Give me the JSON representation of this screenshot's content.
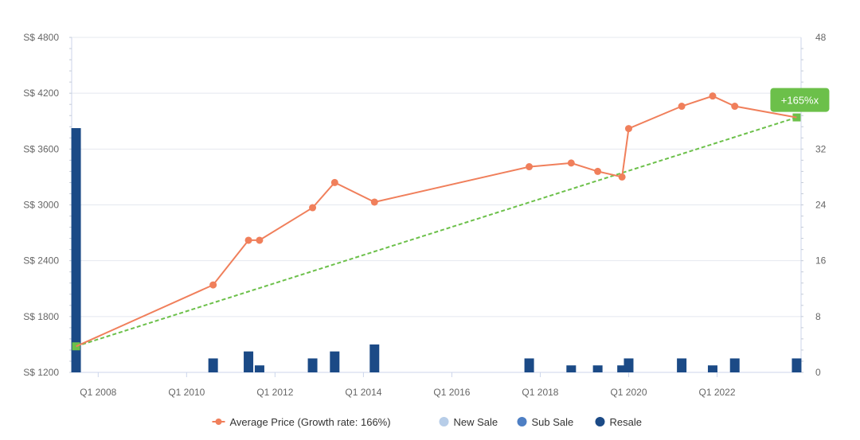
{
  "chart_data": {
    "type": "bar+line",
    "title": "",
    "x_tick_labels": [
      "Q1 2008",
      "Q1 2010",
      "Q1 2012",
      "Q1 2014",
      "Q1 2016",
      "Q1 2018",
      "Q1 2020",
      "Q1 2022"
    ],
    "x_ticks": [
      2008,
      2010,
      2012,
      2014,
      2016,
      2018,
      2020,
      2022
    ],
    "xlim": [
      2007.4,
      2023.9
    ],
    "y_left": {
      "ylim": [
        1200,
        4800
      ],
      "ticks": [
        1200,
        1800,
        2400,
        3000,
        3600,
        4200,
        4800
      ],
      "tick_labels": [
        "S$ 1200",
        "S$ 1800",
        "S$ 2400",
        "S$ 3000",
        "S$ 3600",
        "S$ 4200",
        "S$ 4800"
      ]
    },
    "y_right": {
      "ylim": [
        0,
        48
      ],
      "ticks": [
        0,
        8,
        16,
        24,
        32,
        40,
        48
      ],
      "tick_labels": [
        "0",
        "8",
        "16",
        "24",
        "32",
        "40",
        "48"
      ]
    },
    "grid": true,
    "legend_position": "bottom-center",
    "series": [
      {
        "name": "Average Price (Growth rate: 166%)",
        "type": "line",
        "axis": "left",
        "color": "#f07f5b",
        "points": [
          {
            "x": 2007.5,
            "y": 1480
          },
          {
            "x": 2010.6,
            "y": 2140
          },
          {
            "x": 2011.4,
            "y": 2620
          },
          {
            "x": 2011.65,
            "y": 2620
          },
          {
            "x": 2012.85,
            "y": 2970
          },
          {
            "x": 2013.35,
            "y": 3240
          },
          {
            "x": 2014.25,
            "y": 3030
          },
          {
            "x": 2017.75,
            "y": 3410
          },
          {
            "x": 2018.7,
            "y": 3450
          },
          {
            "x": 2019.3,
            "y": 3360
          },
          {
            "x": 2019.85,
            "y": 3300
          },
          {
            "x": 2020.0,
            "y": 3820
          },
          {
            "x": 2021.2,
            "y": 4060
          },
          {
            "x": 2021.9,
            "y": 4170
          },
          {
            "x": 2022.4,
            "y": 4060
          },
          {
            "x": 2023.8,
            "y": 3940
          }
        ]
      },
      {
        "name": "New Sale",
        "type": "bar",
        "axis": "right",
        "color": "#b7cde8",
        "points": []
      },
      {
        "name": "Sub Sale",
        "type": "bar",
        "axis": "right",
        "color": "#4e7fc4",
        "points": []
      },
      {
        "name": "Resale",
        "type": "bar",
        "axis": "right",
        "color": "#1b4a86",
        "points": [
          {
            "x": 2007.5,
            "y": 35
          },
          {
            "x": 2010.6,
            "y": 2
          },
          {
            "x": 2011.4,
            "y": 3
          },
          {
            "x": 2011.65,
            "y": 1
          },
          {
            "x": 2012.85,
            "y": 2
          },
          {
            "x": 2013.35,
            "y": 3
          },
          {
            "x": 2014.25,
            "y": 4
          },
          {
            "x": 2017.75,
            "y": 2
          },
          {
            "x": 2018.7,
            "y": 1
          },
          {
            "x": 2019.3,
            "y": 1
          },
          {
            "x": 2019.85,
            "y": 1
          },
          {
            "x": 2020.0,
            "y": 2
          },
          {
            "x": 2021.2,
            "y": 2
          },
          {
            "x": 2021.9,
            "y": 1
          },
          {
            "x": 2022.4,
            "y": 2
          },
          {
            "x": 2023.8,
            "y": 2
          }
        ]
      }
    ],
    "trend": {
      "color": "#6cc04a",
      "start": {
        "x": 2007.5,
        "y": 1480
      },
      "end": {
        "x": 2023.8,
        "y": 3940
      },
      "label": "+165%x"
    }
  }
}
